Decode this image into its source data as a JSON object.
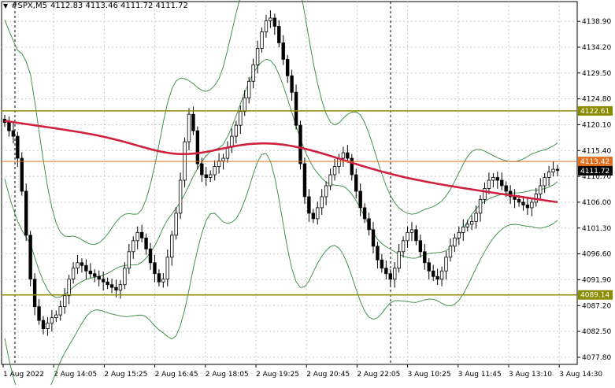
{
  "header": {
    "arrow_icon": "triangle-down-icon",
    "symbol": "#SPX,M5",
    "ohlc": "4112.83 4113.46 4111.72 4111.72"
  },
  "colors": {
    "background": "#ffffff",
    "candle": "#000000",
    "bollinger": "#2e8b3a",
    "ma": "#d02040",
    "level": "#8b8b00",
    "current_line": "#e07020",
    "current_label_bg": "#000000",
    "grid": "#c8c8c8"
  },
  "chart_data": {
    "type": "candlestick",
    "title": "#SPX,M5",
    "ylim": [
      4076.5,
      4142.5
    ],
    "y_ticks": [
      4138.9,
      4134.2,
      4129.5,
      4124.8,
      4120.1,
      4115.4,
      4110.7,
      4106.0,
      4101.3,
      4096.6,
      4091.9,
      4087.2,
      4082.5,
      4077.8
    ],
    "y_tick_labels": [
      "4138.90",
      "4134.20",
      "4129.50",
      "4124.80",
      "4120.10",
      "4115.40",
      "4110.70",
      "4106.00",
      "4101.30",
      "4096.60",
      "4091.90",
      "4087.20",
      "4082.50",
      "4077.80"
    ],
    "x_tick_labels": [
      "1 Aug 2022",
      "2 Aug 14:05",
      "2 Aug 15:25",
      "2 Aug 16:45",
      "2 Aug 18:05",
      "2 Aug 19:25",
      "2 Aug 20:45",
      "2 Aug 22:05",
      "3 Aug 10:25",
      "3 Aug 11:45",
      "3 Aug 13:10",
      "3 Aug 14:30"
    ],
    "session_separators": [
      0,
      11
    ],
    "horizontal_levels": [
      {
        "value": 4122.61,
        "label": "4122.61"
      },
      {
        "value": 4089.14,
        "label": "4089.14"
      }
    ],
    "current_price_line": {
      "value": 4113.42,
      "label": "4113.42"
    },
    "current_price": {
      "value": 4111.72,
      "label": "4111.72"
    },
    "series": [
      {
        "kind": "close_path",
        "values": [
          4120.5,
          4119.0,
          4118.0,
          4114.0,
          4108.0,
          4100.0,
          4092.0,
          4087.0,
          4084.5,
          4083.0,
          4084.0,
          4085.0,
          4085.5,
          4087.0,
          4089.0,
          4092.0,
          4094.0,
          4095.0,
          4094.5,
          4093.5,
          4093.0,
          4092.5,
          4092.0,
          4091.5,
          4091.0,
          4090.5,
          4090.0,
          4091.0,
          4094.0,
          4097.0,
          4099.0,
          4100.5,
          4099.5,
          4097.5,
          4095.0,
          4093.0,
          4091.5,
          4092.0,
          4096.0,
          4100.0,
          4104.0,
          4110.0,
          4117.0,
          4122.0,
          4119.0,
          4113.0,
          4111.0,
          4110.5,
          4111.0,
          4112.5,
          4113.5,
          4114.0,
          4116.0,
          4118.0,
          4120.0,
          4122.5,
          4125.0,
          4128.0,
          4131.0,
          4134.0,
          4137.0,
          4139.0,
          4139.5,
          4138.0,
          4135.0,
          4132.0,
          4129.0,
          4126.0,
          4120.0,
          4113.0,
          4107.0,
          4104.0,
          4103.0,
          4105.0,
          4107.0,
          4109.0,
          4111.0,
          4112.5,
          4114.0,
          4115.0,
          4114.0,
          4111.0,
          4108.0,
          4105.0,
          4103.0,
          4101.0,
          4098.0,
          4095.5,
          4094.0,
          4093.0,
          4092.0,
          4094.0,
          4097.0,
          4099.0,
          4100.5,
          4101.0,
          4099.0,
          4097.0,
          4095.0,
          4093.5,
          4092.5,
          4092.0,
          4093.5,
          4096.0,
          4098.0,
          4099.5,
          4100.5,
          4101.5,
          4102.0,
          4102.5,
          4104.0,
          4106.5,
          4108.5,
          4110.0,
          4110.5,
          4110.0,
          4109.0,
          4108.0,
          4107.0,
          4106.5,
          4106.0,
          4105.5,
          4105.0,
          4106.0,
          4107.5,
          4109.0,
          4110.5,
          4111.5,
          4112.0,
          4111.8
        ]
      },
      {
        "kind": "moving_average",
        "start": 4120.8,
        "end": 4106.0
      },
      {
        "kind": "bollinger_upper",
        "note": "wide envelope"
      },
      {
        "kind": "bollinger_lower",
        "note": "wide envelope"
      }
    ]
  }
}
